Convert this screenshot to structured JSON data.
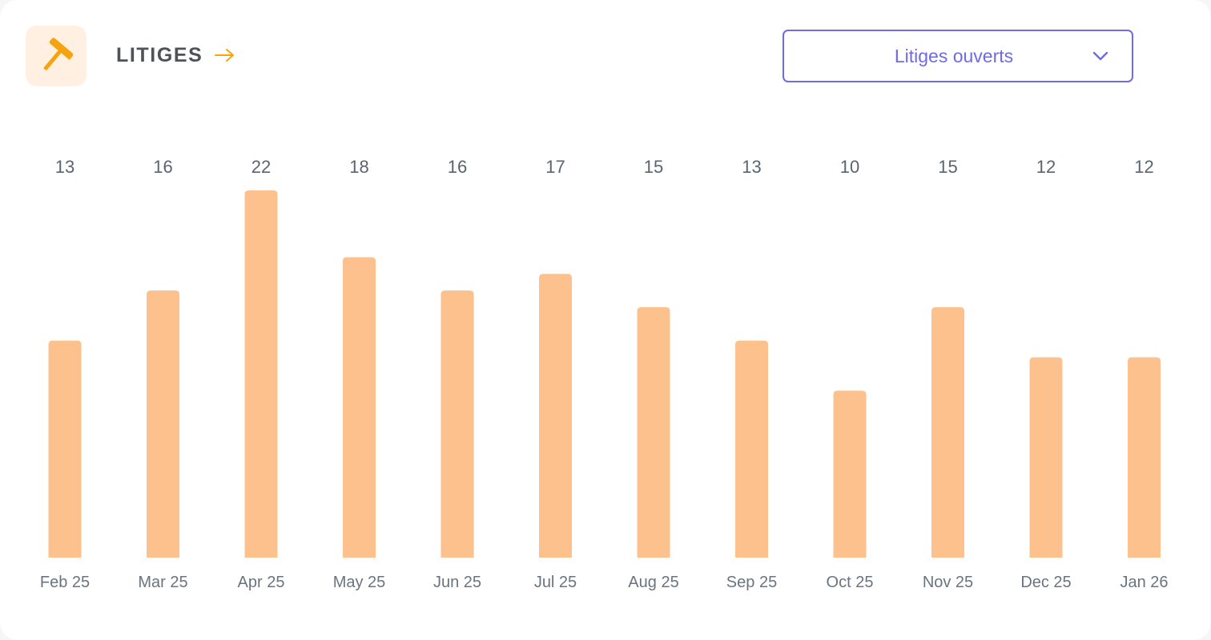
{
  "header": {
    "title": "LITIGES",
    "icon": "hammer-icon",
    "accent_color": "#f5a40f",
    "tile_color": "#fff0e1"
  },
  "filter": {
    "selected": "Litiges ouverts",
    "color": "#6f6ae6"
  },
  "chart_data": {
    "type": "bar",
    "categories": [
      "Feb 25",
      "Mar 25",
      "Apr 25",
      "May 25",
      "Jun 25",
      "Jul 25",
      "Aug 25",
      "Sep 25",
      "Oct 25",
      "Nov 25",
      "Dec 25",
      "Jan 26"
    ],
    "values": [
      13,
      16,
      22,
      18,
      16,
      17,
      15,
      13,
      10,
      15,
      12,
      12
    ],
    "ylim": [
      0,
      22
    ],
    "bar_color": "#fcc18c",
    "grid": false,
    "legend": "none"
  }
}
